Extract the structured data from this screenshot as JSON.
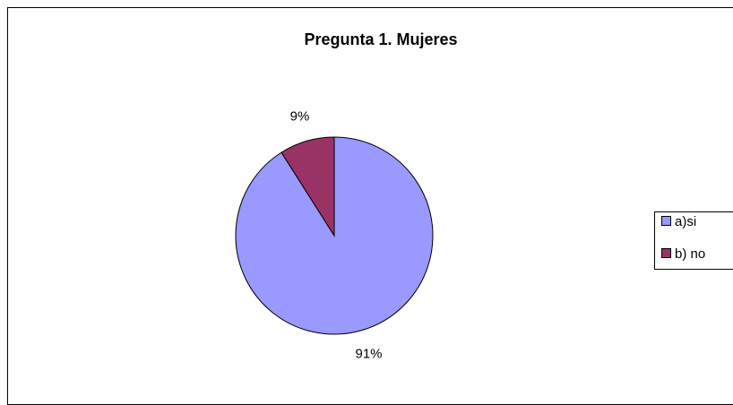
{
  "chart_data": {
    "type": "pie",
    "title": "Pregunta 1. Mujeres",
    "categories": [
      "a)si",
      "b) no"
    ],
    "values": [
      91,
      9
    ],
    "value_labels": [
      "91%",
      "9%"
    ],
    "colors": [
      "#9999ff",
      "#993366"
    ],
    "legend": "right"
  }
}
